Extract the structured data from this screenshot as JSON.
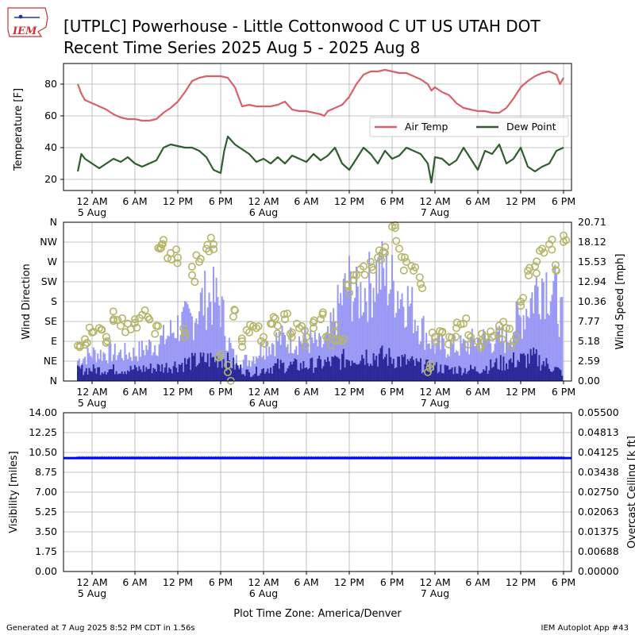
{
  "header": {
    "logo_text": "IEM",
    "title_line1": "[UTPLC] Powerhouse - Little Cottonwood C UT US UTAH DOT",
    "title_line2": "Recent Time Series 2025 Aug 5 - 2025 Aug 8"
  },
  "footer": {
    "left": "Generated at 7 Aug 2025 8:52 PM CDT in 1.56s",
    "right": "IEM Autoplot App #43"
  },
  "colors": {
    "air_temp": "#d9606a",
    "dew_point": "#2e5e2e",
    "wind_dir": "#b5b56a",
    "gust_bar": "#9a9af5",
    "speed_bar": "#2a2a9a",
    "visibility": "#0000ff",
    "ceiling_label": "#008000",
    "grid": "#b0b0b0"
  },
  "chart_data": [
    {
      "type": "line",
      "x_unit": "hours since 2025-08-04 22:00 America/Denver",
      "x_range": [
        0,
        68
      ],
      "x_ticks": [
        {
          "x": 2,
          "label": "12 AM",
          "sub": "5 Aug"
        },
        {
          "x": 8,
          "label": "6 AM",
          "sub": ""
        },
        {
          "x": 14,
          "label": "12 PM",
          "sub": ""
        },
        {
          "x": 20,
          "label": "6 PM",
          "sub": ""
        },
        {
          "x": 26,
          "label": "12 AM",
          "sub": "6 Aug"
        },
        {
          "x": 32,
          "label": "6 AM",
          "sub": ""
        },
        {
          "x": 38,
          "label": "12 PM",
          "sub": ""
        },
        {
          "x": 44,
          "label": "6 PM",
          "sub": ""
        },
        {
          "x": 50,
          "label": "12 AM",
          "sub": "7 Aug"
        },
        {
          "x": 56,
          "label": "6 AM",
          "sub": ""
        },
        {
          "x": 62,
          "label": "12 PM",
          "sub": ""
        },
        {
          "x": 68,
          "label": "6 PM",
          "sub": ""
        }
      ],
      "ylabel": "Temperature [F]",
      "ylim": [
        13,
        93
      ],
      "y_ticks": [
        20,
        40,
        60,
        80
      ],
      "legend": {
        "position": "right",
        "entries": [
          "Air Temp",
          "Dew Point"
        ]
      },
      "series": [
        {
          "name": "Air Temp",
          "x": [
            0,
            0.5,
            1,
            2,
            3,
            4,
            5,
            6,
            7,
            8,
            9,
            10,
            11,
            12,
            13,
            14,
            15,
            16,
            17,
            18,
            19,
            20,
            21,
            22,
            23,
            24,
            25,
            26,
            27,
            28,
            29,
            30,
            31,
            32,
            33,
            34,
            34.5,
            35,
            36,
            37,
            38,
            39,
            40,
            41,
            42,
            43,
            44,
            45,
            46,
            47,
            48,
            49,
            49.5,
            50,
            51,
            52,
            53,
            54,
            55,
            56,
            57,
            58,
            59,
            60,
            61,
            62,
            63,
            64,
            65,
            66,
            67,
            67.5,
            68
          ],
          "values": [
            80,
            74,
            70,
            68,
            66,
            64,
            61,
            59,
            58,
            58,
            57,
            57,
            58,
            62,
            65,
            69,
            75,
            82,
            84,
            85,
            85,
            85,
            84,
            78,
            66,
            67,
            66,
            66,
            66,
            67,
            69,
            64,
            63,
            63,
            62,
            61,
            60,
            63,
            65,
            67,
            72,
            80,
            86,
            88,
            88,
            89,
            88,
            87,
            87,
            85,
            83,
            80,
            76,
            78,
            75,
            73,
            68,
            65,
            64,
            63,
            63,
            62,
            62,
            65,
            71,
            78,
            82,
            85,
            87,
            88,
            86,
            80,
            84
          ]
        },
        {
          "name": "Dew Point",
          "x": [
            0,
            0.5,
            1,
            2,
            3,
            4,
            5,
            6,
            7,
            8,
            9,
            10,
            11,
            12,
            13,
            14,
            15,
            16,
            17,
            18,
            19,
            20,
            20.5,
            21,
            22,
            23,
            24,
            25,
            26,
            27,
            28,
            29,
            30,
            31,
            32,
            33,
            34,
            35,
            36,
            37,
            38,
            39,
            40,
            41,
            42,
            43,
            44,
            45,
            46,
            47,
            48,
            49,
            49.5,
            50,
            51,
            52,
            53,
            54,
            55,
            56,
            57,
            58,
            59,
            60,
            61,
            62,
            63,
            64,
            65,
            66,
            67,
            68
          ],
          "values": [
            25,
            36,
            33,
            30,
            27,
            30,
            33,
            31,
            34,
            30,
            28,
            30,
            32,
            40,
            42,
            41,
            40,
            40,
            38,
            34,
            26,
            24,
            38,
            47,
            42,
            39,
            36,
            31,
            33,
            30,
            34,
            30,
            35,
            33,
            31,
            36,
            32,
            35,
            40,
            30,
            26,
            33,
            40,
            36,
            30,
            38,
            33,
            35,
            40,
            38,
            36,
            30,
            18,
            34,
            33,
            29,
            32,
            40,
            33,
            26,
            38,
            36,
            42,
            30,
            33,
            40,
            28,
            25,
            28,
            30,
            38,
            40
          ]
        }
      ]
    },
    {
      "type": "bar",
      "x_range": [
        0,
        68
      ],
      "ylabel": "Wind Direction",
      "y2label": "Wind Speed [mph]",
      "y_ticks_left": [
        "N",
        "NE",
        "E",
        "SE",
        "S",
        "SW",
        "W",
        "NW",
        "N"
      ],
      "y_ticks_right": [
        "0.00",
        "2.59",
        "5.18",
        "7.77",
        "10.36",
        "12.94",
        "15.53",
        "18.12",
        "20.71"
      ],
      "ylim_right": [
        0,
        20.71
      ],
      "series": [
        {
          "name": "Wind Gust",
          "x": [
            0,
            2,
            4,
            6,
            8,
            10,
            12,
            13,
            14,
            16,
            17,
            18,
            19,
            20,
            21,
            22,
            24,
            26,
            28,
            30,
            32,
            34,
            35,
            36,
            37,
            38,
            39,
            40,
            41,
            42,
            43,
            44,
            45,
            46,
            47,
            48,
            50,
            52,
            54,
            56,
            58,
            60,
            61,
            62,
            63,
            64,
            65,
            66,
            67,
            68
          ],
          "values": [
            3,
            4,
            4,
            4,
            4,
            5,
            6,
            7,
            8,
            9,
            11,
            12,
            12,
            11,
            6,
            3,
            3,
            5,
            6,
            6,
            6,
            5,
            6,
            9,
            12,
            14,
            12,
            13,
            14,
            16,
            15,
            14,
            13,
            12,
            10,
            8,
            5,
            5,
            5,
            6,
            6,
            6,
            8,
            9,
            11,
            13,
            15,
            14,
            12,
            8
          ]
        },
        {
          "name": "Wind Speed",
          "x": [
            0,
            4,
            8,
            12,
            16,
            20,
            24,
            28,
            32,
            36,
            40,
            44,
            48,
            52,
            56,
            60,
            64,
            68
          ],
          "values": [
            1.5,
            1.5,
            1.5,
            1.8,
            2.5,
            3.0,
            1.0,
            2.0,
            2.0,
            2.5,
            3.5,
            3.0,
            2.0,
            1.5,
            1.5,
            2.5,
            3.0,
            1.0
          ]
        },
        {
          "name": "Wind Direction",
          "x": [
            0,
            1,
            2,
            3,
            4,
            5,
            6,
            7,
            8,
            9,
            10,
            11,
            11.5,
            12,
            13,
            14,
            15,
            16,
            17,
            18,
            19,
            20,
            21,
            22,
            23,
            24,
            25,
            26,
            27,
            28,
            29,
            30,
            31,
            32,
            33,
            34,
            35,
            36,
            37,
            38,
            39,
            40,
            41,
            42,
            43,
            44,
            45,
            46,
            47,
            48,
            49,
            50,
            51,
            52,
            53,
            54,
            55,
            56,
            57,
            58,
            59,
            60,
            61,
            62,
            63,
            64,
            65,
            66,
            67,
            68
          ],
          "values": [
            80,
            95,
            110,
            120,
            100,
            140,
            125,
            130,
            140,
            150,
            140,
            125,
            300,
            320,
            290,
            280,
            100,
            240,
            270,
            300,
            310,
            60,
            20,
            160,
            90,
            110,
            120,
            100,
            130,
            125,
            140,
            110,
            120,
            100,
            120,
            140,
            100,
            110,
            90,
            200,
            240,
            260,
            270,
            280,
            290,
            350,
            300,
            270,
            250,
            220,
            20,
            100,
            110,
            100,
            120,
            130,
            100,
            90,
            100,
            100,
            110,
            120,
            90,
            180,
            250,
            260,
            300,
            310,
            250,
            330
          ]
        }
      ]
    },
    {
      "type": "scatter",
      "x_range": [
        0,
        68
      ],
      "ylabel": "Visibility [miles]",
      "y2label": "Overcast Ceiling [k ft]",
      "ylim": [
        0,
        14
      ],
      "y_ticks_left": [
        "0.00",
        "1.75",
        "3.50",
        "5.25",
        "7.00",
        "8.75",
        "10.50",
        "12.25",
        "14.00"
      ],
      "y_ticks_right": [
        "0.00000",
        "0.00688",
        "0.01375",
        "0.02063",
        "0.02750",
        "0.03438",
        "0.04125",
        "0.04813",
        "0.05500"
      ],
      "xlabel": "Plot Time Zone: America/Denver",
      "series": [
        {
          "name": "Visibility",
          "x_start": 0,
          "x_end": 68,
          "step": 0.25,
          "value": 10
        }
      ]
    }
  ]
}
